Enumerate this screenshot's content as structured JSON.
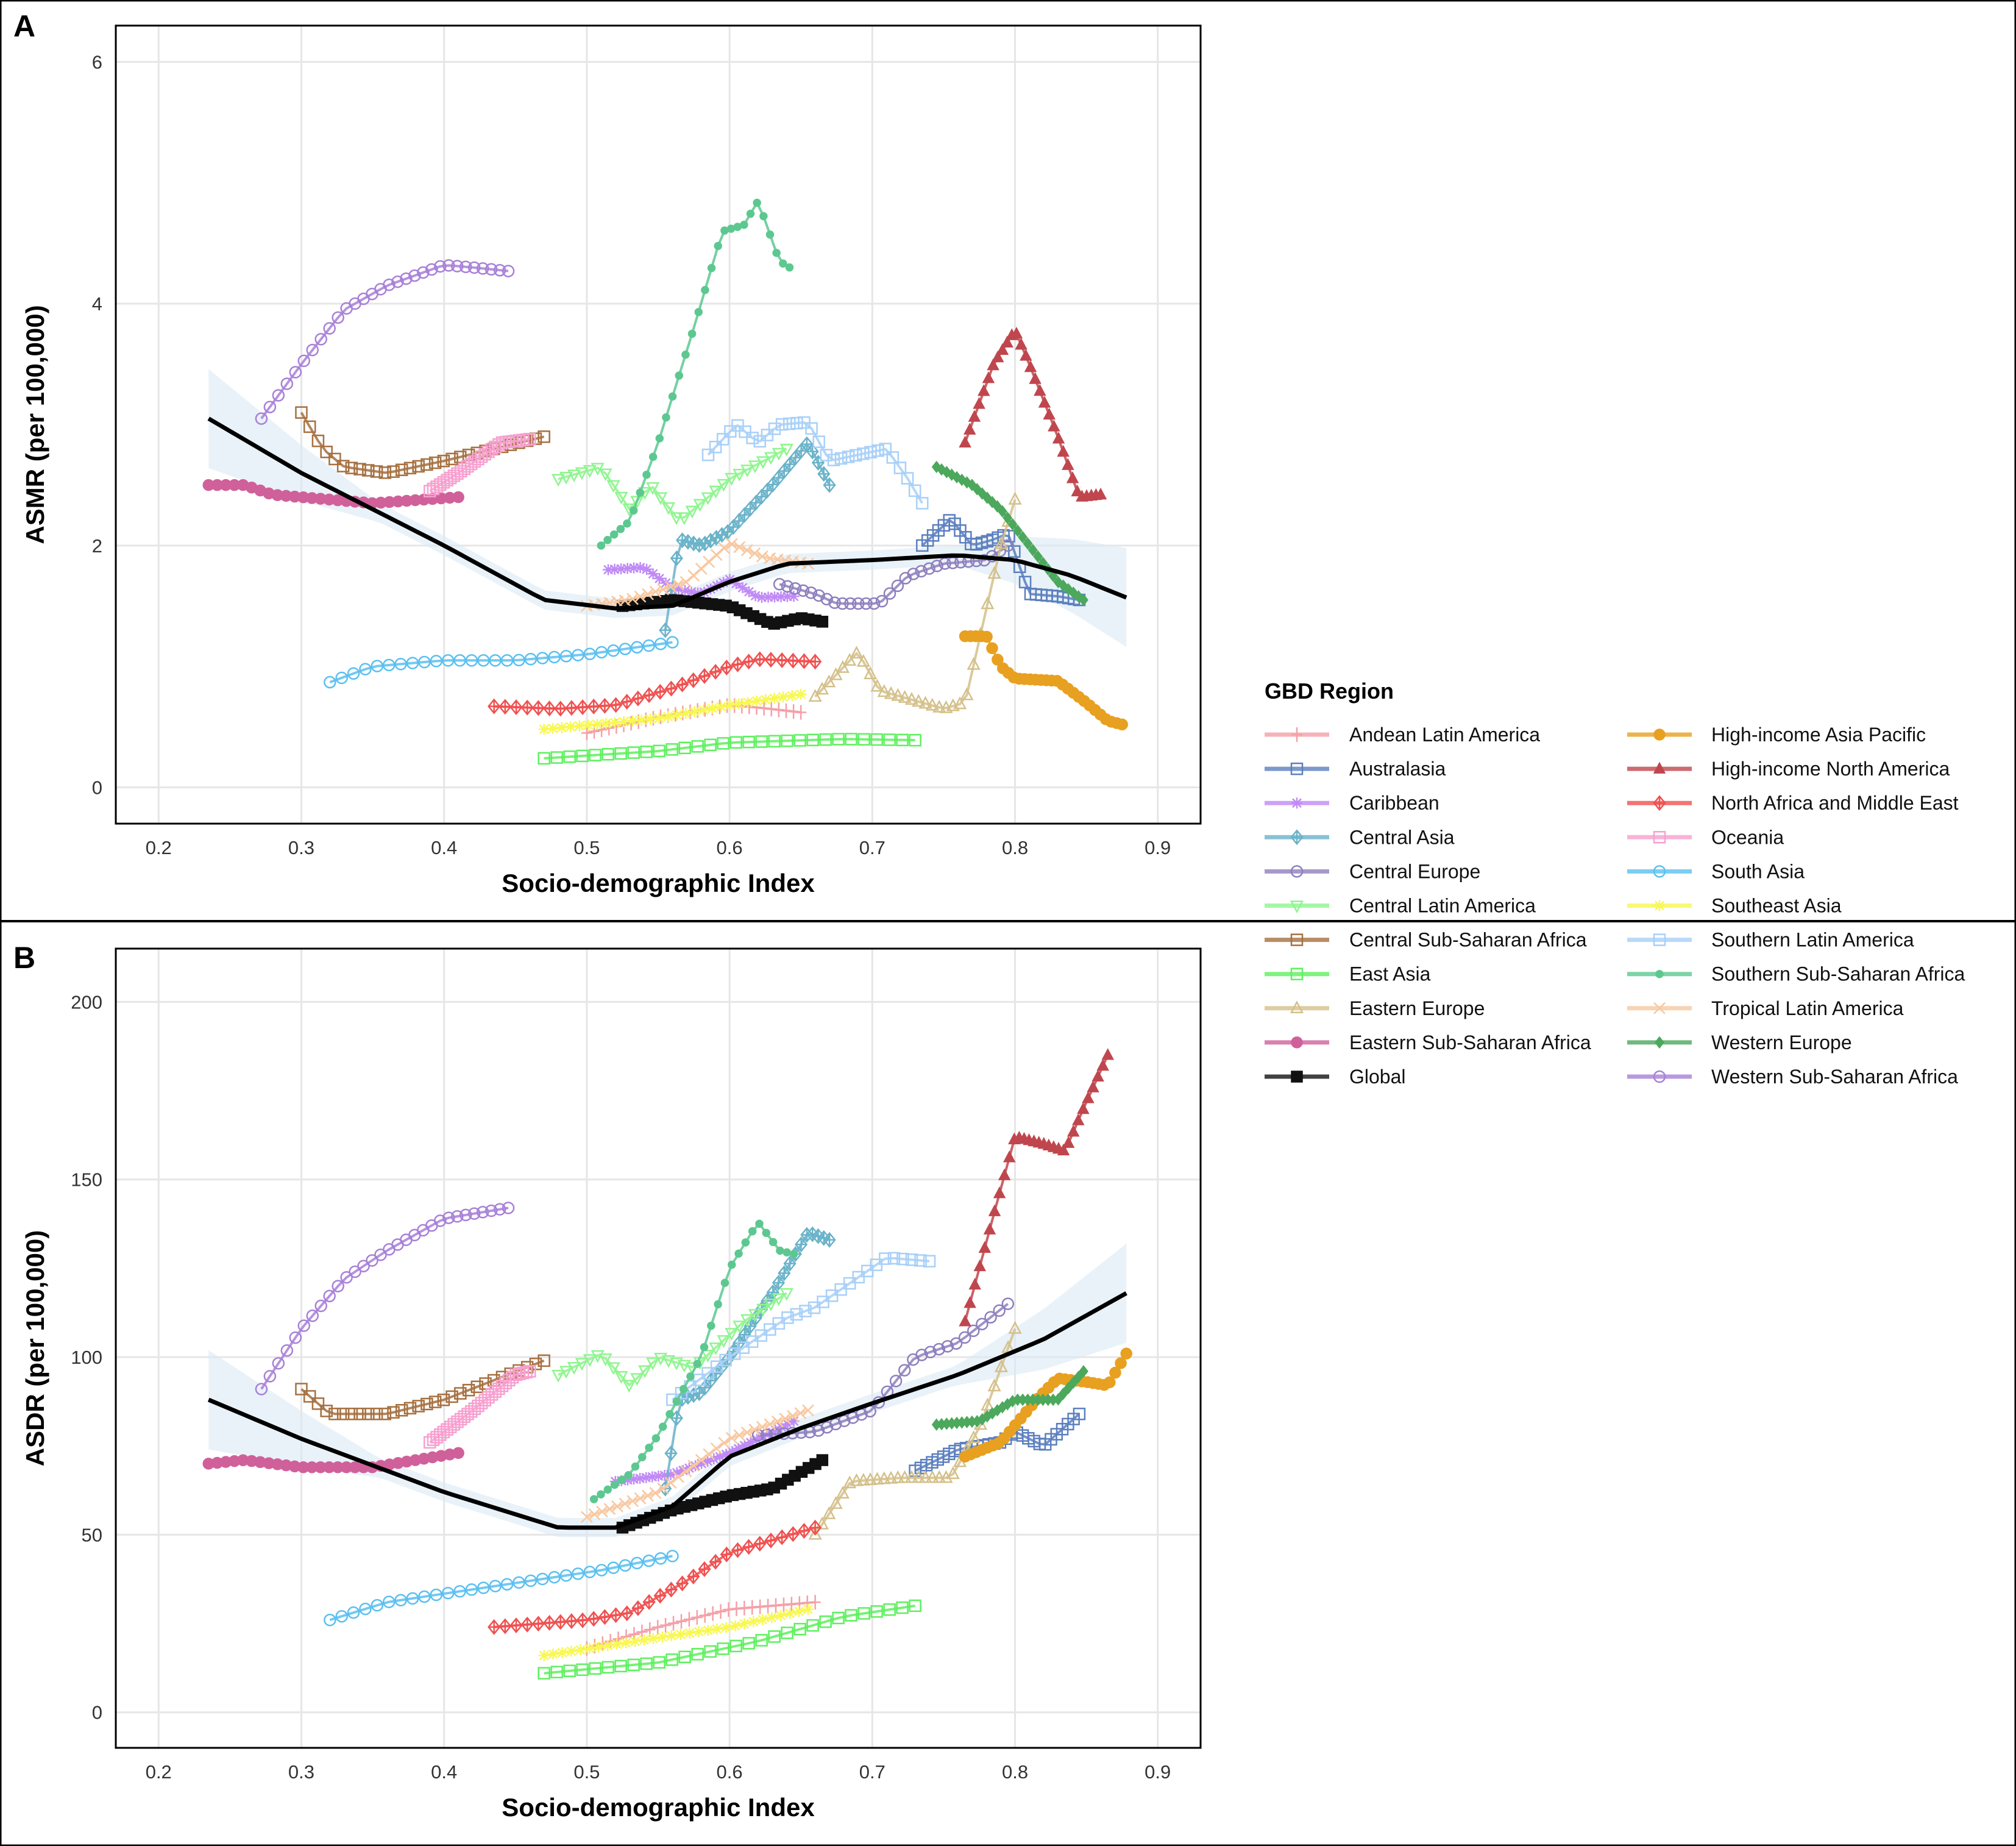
{
  "chart_data": [
    {
      "panel": "A",
      "type": "line",
      "xlabel": "Socio-demographic Index",
      "ylabel": "ASMR (per 100,000)",
      "xlim": [
        0.17,
        0.93
      ],
      "ylim": [
        -0.3,
        6.3
      ],
      "xticks": [
        "0.2",
        "0.3",
        "0.4",
        "0.5",
        "0.6",
        "0.7",
        "0.8",
        "0.9"
      ],
      "yticks": [
        "0",
        "2",
        "4",
        "6"
      ],
      "grid": true
    },
    {
      "panel": "B",
      "type": "line",
      "xlabel": "Socio-demographic Index",
      "ylabel": "ASDR (per 100,000)",
      "xlim": [
        0.17,
        0.93
      ],
      "ylim": [
        -10,
        215
      ],
      "xticks": [
        "0.2",
        "0.3",
        "0.4",
        "0.5",
        "0.6",
        "0.7",
        "0.8",
        "0.9"
      ],
      "yticks": [
        "0",
        "50",
        "100",
        "150",
        "200"
      ],
      "grid": true
    }
  ],
  "legend": {
    "title": "GBD Region",
    "placement": "right"
  },
  "smooth": {
    "A": [
      [
        0.235,
        3.05
      ],
      [
        0.3,
        2.6
      ],
      [
        0.4,
        2.0
      ],
      [
        0.47,
        1.55
      ],
      [
        0.52,
        1.48
      ],
      [
        0.56,
        1.5
      ],
      [
        0.6,
        1.7
      ],
      [
        0.64,
        1.85
      ],
      [
        0.7,
        1.88
      ],
      [
        0.76,
        1.92
      ],
      [
        0.8,
        1.88
      ],
      [
        0.84,
        1.75
      ],
      [
        0.878,
        1.57
      ]
    ],
    "B": [
      [
        0.235,
        88
      ],
      [
        0.3,
        77
      ],
      [
        0.4,
        62
      ],
      [
        0.48,
        52
      ],
      [
        0.52,
        52
      ],
      [
        0.56,
        58
      ],
      [
        0.6,
        72
      ],
      [
        0.65,
        80
      ],
      [
        0.7,
        87
      ],
      [
        0.76,
        95
      ],
      [
        0.82,
        105
      ],
      [
        0.878,
        118
      ]
    ]
  },
  "series": [
    {
      "name": "Andean Latin America",
      "color": "#f4a0a8",
      "marker": "plus",
      "A": [
        [
          0.5,
          0.45
        ],
        [
          0.55,
          0.58
        ],
        [
          0.6,
          0.68
        ],
        [
          0.62,
          0.66
        ],
        [
          0.65,
          0.62
        ]
      ],
      "B": [
        [
          0.5,
          18
        ],
        [
          0.55,
          24
        ],
        [
          0.6,
          29
        ],
        [
          0.66,
          31
        ]
      ]
    },
    {
      "name": "Australasia",
      "color": "#5b7fbf",
      "marker": "square",
      "A": [
        [
          0.735,
          2.0
        ],
        [
          0.755,
          2.22
        ],
        [
          0.77,
          2.0
        ],
        [
          0.785,
          2.05
        ],
        [
          0.795,
          2.1
        ],
        [
          0.81,
          1.6
        ],
        [
          0.83,
          1.58
        ],
        [
          0.845,
          1.55
        ]
      ],
      "B": [
        [
          0.73,
          68
        ],
        [
          0.76,
          74
        ],
        [
          0.79,
          76
        ],
        [
          0.8,
          79
        ],
        [
          0.82,
          75
        ],
        [
          0.845,
          84
        ]
      ]
    },
    {
      "name": "Caribbean",
      "color": "#c08af6",
      "marker": "star",
      "A": [
        [
          0.515,
          1.8
        ],
        [
          0.54,
          1.82
        ],
        [
          0.56,
          1.65
        ],
        [
          0.58,
          1.6
        ],
        [
          0.6,
          1.72
        ],
        [
          0.62,
          1.57
        ],
        [
          0.645,
          1.58
        ]
      ],
      "B": [
        [
          0.52,
          65
        ],
        [
          0.56,
          67
        ],
        [
          0.6,
          73
        ],
        [
          0.645,
          82
        ]
      ]
    },
    {
      "name": "Central Asia",
      "color": "#6ab3c9",
      "marker": "diamond",
      "A": [
        [
          0.555,
          1.3
        ],
        [
          0.565,
          2.05
        ],
        [
          0.58,
          2.0
        ],
        [
          0.6,
          2.12
        ],
        [
          0.63,
          2.5
        ],
        [
          0.655,
          2.85
        ],
        [
          0.67,
          2.5
        ]
      ],
      "B": [
        [
          0.555,
          63
        ],
        [
          0.565,
          88
        ],
        [
          0.58,
          90
        ],
        [
          0.6,
          100
        ],
        [
          0.63,
          118
        ],
        [
          0.655,
          135
        ],
        [
          0.67,
          133
        ]
      ]
    },
    {
      "name": "Central Europe",
      "color": "#8e7fbe",
      "marker": "circle-open",
      "A": [
        [
          0.635,
          1.68
        ],
        [
          0.66,
          1.6
        ],
        [
          0.675,
          1.52
        ],
        [
          0.705,
          1.52
        ],
        [
          0.725,
          1.75
        ],
        [
          0.75,
          1.85
        ],
        [
          0.78,
          1.88
        ],
        [
          0.795,
          2.0
        ]
      ],
      "B": [
        [
          0.62,
          78
        ],
        [
          0.66,
          79
        ],
        [
          0.7,
          85
        ],
        [
          0.73,
          100
        ],
        [
          0.76,
          104
        ],
        [
          0.795,
          115
        ]
      ]
    },
    {
      "name": "Central Latin America",
      "color": "#8ef58e",
      "marker": "triangle-down",
      "A": [
        [
          0.48,
          2.55
        ],
        [
          0.51,
          2.65
        ],
        [
          0.53,
          2.3
        ],
        [
          0.545,
          2.5
        ],
        [
          0.565,
          2.2
        ],
        [
          0.58,
          2.35
        ],
        [
          0.6,
          2.55
        ],
        [
          0.64,
          2.8
        ]
      ],
      "B": [
        [
          0.48,
          95
        ],
        [
          0.51,
          101
        ],
        [
          0.53,
          92
        ],
        [
          0.55,
          100
        ],
        [
          0.575,
          97
        ],
        [
          0.61,
          110
        ],
        [
          0.64,
          118
        ]
      ]
    },
    {
      "name": "Central Sub-Saharan Africa",
      "color": "#a67040",
      "marker": "square",
      "A": [
        [
          0.3,
          3.1
        ],
        [
          0.315,
          2.8
        ],
        [
          0.33,
          2.65
        ],
        [
          0.36,
          2.6
        ],
        [
          0.4,
          2.7
        ],
        [
          0.47,
          2.9
        ]
      ],
      "B": [
        [
          0.3,
          91
        ],
        [
          0.32,
          84
        ],
        [
          0.36,
          84
        ],
        [
          0.4,
          88
        ],
        [
          0.47,
          99
        ]
      ]
    },
    {
      "name": "East Asia",
      "color": "#5ef05e",
      "marker": "square",
      "A": [
        [
          0.47,
          0.24
        ],
        [
          0.55,
          0.3
        ],
        [
          0.6,
          0.37
        ],
        [
          0.68,
          0.4
        ],
        [
          0.73,
          0.39
        ]
      ],
      "B": [
        [
          0.47,
          11
        ],
        [
          0.55,
          14
        ],
        [
          0.62,
          20
        ],
        [
          0.68,
          27
        ],
        [
          0.73,
          30
        ]
      ]
    },
    {
      "name": "Eastern Europe",
      "color": "#d4c08a",
      "marker": "triangle",
      "A": [
        [
          0.66,
          0.75
        ],
        [
          0.69,
          1.12
        ],
        [
          0.705,
          0.8
        ],
        [
          0.75,
          0.65
        ],
        [
          0.765,
          0.7
        ],
        [
          0.79,
          2.0
        ],
        [
          0.8,
          2.38
        ]
      ],
      "B": [
        [
          0.66,
          50
        ],
        [
          0.685,
          65
        ],
        [
          0.72,
          66
        ],
        [
          0.755,
          66
        ],
        [
          0.775,
          80
        ],
        [
          0.8,
          108
        ]
      ]
    },
    {
      "name": "Eastern Sub-Saharan Africa",
      "color": "#d0609a",
      "marker": "circle",
      "A": [
        [
          0.235,
          2.5
        ],
        [
          0.26,
          2.5
        ],
        [
          0.28,
          2.42
        ],
        [
          0.35,
          2.35
        ],
        [
          0.41,
          2.4
        ]
      ],
      "B": [
        [
          0.235,
          70
        ],
        [
          0.26,
          71
        ],
        [
          0.3,
          69
        ],
        [
          0.35,
          69
        ],
        [
          0.41,
          73
        ]
      ]
    },
    {
      "name": "Global",
      "color": "#111111",
      "marker": "square-filled",
      "A": [
        [
          0.525,
          1.5
        ],
        [
          0.56,
          1.55
        ],
        [
          0.6,
          1.5
        ],
        [
          0.63,
          1.35
        ],
        [
          0.65,
          1.4
        ],
        [
          0.665,
          1.37
        ]
      ],
      "B": [
        [
          0.525,
          52
        ],
        [
          0.56,
          57
        ],
        [
          0.6,
          61
        ],
        [
          0.63,
          63
        ],
        [
          0.665,
          71
        ]
      ]
    },
    {
      "name": "High-income Asia Pacific",
      "color": "#e8a020",
      "marker": "circle",
      "A": [
        [
          0.765,
          1.25
        ],
        [
          0.78,
          1.25
        ],
        [
          0.79,
          1.0
        ],
        [
          0.8,
          0.9
        ],
        [
          0.83,
          0.88
        ],
        [
          0.85,
          0.7
        ],
        [
          0.865,
          0.55
        ],
        [
          0.875,
          0.52
        ]
      ],
      "B": [
        [
          0.765,
          72
        ],
        [
          0.79,
          76
        ],
        [
          0.815,
          88
        ],
        [
          0.83,
          94
        ],
        [
          0.85,
          93
        ],
        [
          0.865,
          92
        ],
        [
          0.878,
          101
        ]
      ]
    },
    {
      "name": "High-income North America",
      "color": "#c0464e",
      "marker": "triangle-filled",
      "A": [
        [
          0.765,
          2.85
        ],
        [
          0.785,
          3.5
        ],
        [
          0.8,
          3.78
        ],
        [
          0.81,
          3.5
        ],
        [
          0.83,
          2.9
        ],
        [
          0.845,
          2.4
        ],
        [
          0.86,
          2.42
        ]
      ],
      "B": [
        [
          0.765,
          110
        ],
        [
          0.785,
          140
        ],
        [
          0.8,
          162
        ],
        [
          0.82,
          160
        ],
        [
          0.835,
          158
        ],
        [
          0.848,
          170
        ],
        [
          0.865,
          185
        ]
      ]
    },
    {
      "name": "North Africa and Middle East",
      "color": "#f05050",
      "marker": "diamond",
      "A": [
        [
          0.435,
          0.67
        ],
        [
          0.48,
          0.65
        ],
        [
          0.52,
          0.68
        ],
        [
          0.56,
          0.82
        ],
        [
          0.6,
          1.0
        ],
        [
          0.62,
          1.06
        ],
        [
          0.66,
          1.04
        ]
      ],
      "B": [
        [
          0.435,
          24
        ],
        [
          0.5,
          26
        ],
        [
          0.53,
          28
        ],
        [
          0.57,
          37
        ],
        [
          0.6,
          45
        ],
        [
          0.66,
          52
        ]
      ]
    },
    {
      "name": "Oceania",
      "color": "#f8a0d0",
      "marker": "square",
      "A": [
        [
          0.39,
          2.45
        ],
        [
          0.41,
          2.6
        ],
        [
          0.44,
          2.85
        ],
        [
          0.46,
          2.88
        ]
      ],
      "B": [
        [
          0.39,
          76
        ],
        [
          0.42,
          85
        ],
        [
          0.45,
          95
        ],
        [
          0.46,
          96
        ]
      ]
    },
    {
      "name": "South Asia",
      "color": "#5ac0f0",
      "marker": "circle-open",
      "A": [
        [
          0.32,
          0.87
        ],
        [
          0.35,
          1.0
        ],
        [
          0.4,
          1.05
        ],
        [
          0.45,
          1.05
        ],
        [
          0.5,
          1.1
        ],
        [
          0.56,
          1.2
        ]
      ],
      "B": [
        [
          0.32,
          26
        ],
        [
          0.36,
          31
        ],
        [
          0.41,
          34
        ],
        [
          0.46,
          37
        ],
        [
          0.51,
          40
        ],
        [
          0.56,
          44
        ]
      ]
    },
    {
      "name": "Southeast Asia",
      "color": "#f8f850",
      "marker": "star",
      "A": [
        [
          0.47,
          0.48
        ],
        [
          0.55,
          0.57
        ],
        [
          0.6,
          0.68
        ],
        [
          0.65,
          0.77
        ]
      ],
      "B": [
        [
          0.47,
          16
        ],
        [
          0.55,
          21
        ],
        [
          0.6,
          24
        ],
        [
          0.655,
          29
        ]
      ]
    },
    {
      "name": "Southern Latin America",
      "color": "#a8d0f8",
      "marker": "square",
      "A": [
        [
          0.585,
          2.75
        ],
        [
          0.605,
          3.0
        ],
        [
          0.62,
          2.85
        ],
        [
          0.635,
          3.0
        ],
        [
          0.655,
          3.02
        ],
        [
          0.67,
          2.7
        ],
        [
          0.71,
          2.8
        ],
        [
          0.725,
          2.55
        ],
        [
          0.735,
          2.35
        ]
      ],
      "B": [
        [
          0.56,
          88
        ],
        [
          0.6,
          100
        ],
        [
          0.64,
          111
        ],
        [
          0.66,
          114
        ],
        [
          0.71,
          128
        ],
        [
          0.74,
          127
        ]
      ]
    },
    {
      "name": "Southern Sub-Saharan Africa",
      "color": "#5cc890",
      "marker": "dot",
      "A": [
        [
          0.51,
          2.0
        ],
        [
          0.53,
          2.2
        ],
        [
          0.55,
          2.85
        ],
        [
          0.575,
          3.8
        ],
        [
          0.595,
          4.6
        ],
        [
          0.61,
          4.65
        ],
        [
          0.62,
          4.85
        ],
        [
          0.635,
          4.35
        ],
        [
          0.642,
          4.3
        ]
      ],
      "B": [
        [
          0.505,
          60
        ],
        [
          0.53,
          67
        ],
        [
          0.55,
          78
        ],
        [
          0.58,
          100
        ],
        [
          0.6,
          125
        ],
        [
          0.62,
          138
        ],
        [
          0.635,
          130
        ],
        [
          0.645,
          129
        ]
      ]
    },
    {
      "name": "Tropical Latin America",
      "color": "#f8c8a0",
      "marker": "x",
      "A": [
        [
          0.5,
          1.5
        ],
        [
          0.53,
          1.55
        ],
        [
          0.57,
          1.7
        ],
        [
          0.6,
          2.02
        ],
        [
          0.625,
          1.9
        ],
        [
          0.655,
          1.85
        ]
      ],
      "B": [
        [
          0.5,
          55
        ],
        [
          0.55,
          62
        ],
        [
          0.6,
          77
        ],
        [
          0.655,
          85
        ]
      ]
    },
    {
      "name": "Western Europe",
      "color": "#4ca85c",
      "marker": "diamond-filled",
      "A": [
        [
          0.745,
          2.65
        ],
        [
          0.77,
          2.5
        ],
        [
          0.79,
          2.3
        ],
        [
          0.81,
          2.0
        ],
        [
          0.83,
          1.7
        ],
        [
          0.848,
          1.55
        ]
      ],
      "B": [
        [
          0.745,
          81
        ],
        [
          0.775,
          82
        ],
        [
          0.8,
          88
        ],
        [
          0.83,
          88
        ],
        [
          0.848,
          96
        ]
      ]
    },
    {
      "name": "Western Sub-Saharan Africa",
      "color": "#a880d8",
      "marker": "circle-open",
      "A": [
        [
          0.272,
          3.05
        ],
        [
          0.3,
          3.5
        ],
        [
          0.33,
          3.95
        ],
        [
          0.36,
          4.15
        ],
        [
          0.4,
          4.32
        ],
        [
          0.42,
          4.3
        ],
        [
          0.445,
          4.27
        ]
      ],
      "B": [
        [
          0.272,
          91
        ],
        [
          0.3,
          108
        ],
        [
          0.33,
          122
        ],
        [
          0.36,
          130
        ],
        [
          0.4,
          139
        ],
        [
          0.445,
          142
        ]
      ]
    }
  ]
}
